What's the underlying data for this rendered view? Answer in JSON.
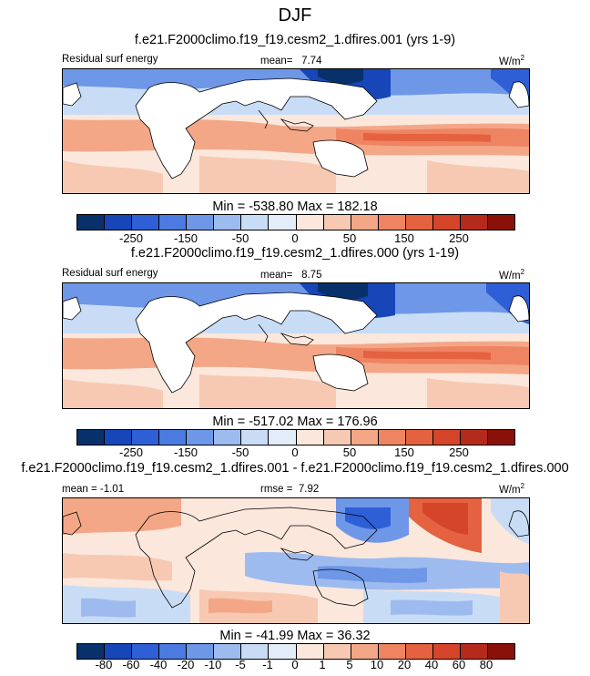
{
  "season": "DJF",
  "colors": {
    "scale": [
      "#08306b",
      "#1746b8",
      "#2f5fd6",
      "#4c7ae0",
      "#6f97e8",
      "#9ebbef",
      "#c9dcf5",
      "#e2edf9",
      "#fbe7dc",
      "#f7c9b2",
      "#f3a787",
      "#ee8462",
      "#e4623f",
      "#d4452a",
      "#b42b1c",
      "#8a1109"
    ],
    "land": "#ffffff",
    "coast": "#000000"
  },
  "panels": [
    {
      "case": "f.e21.F2000climo.f19_f19.cesm2_1.dfires.001 (yrs 1-9)",
      "variable": "Residual surf energy",
      "stat_label": "mean=",
      "stat_value": "7.74",
      "units": "W/m",
      "units_sup": "2",
      "minmax": "Min = -538.80 Max = 182.18",
      "ticks": [
        "-250",
        "-150",
        "-50",
        "0",
        "50",
        "150",
        "250"
      ]
    },
    {
      "case": "f.e21.F2000climo.f19_f19.cesm2_1.dfires.000 (yrs 1-19)",
      "variable": "Residual surf energy",
      "stat_label": "mean=",
      "stat_value": "8.75",
      "units": "W/m",
      "units_sup": "2",
      "minmax": "Min = -517.02 Max = 176.96",
      "ticks": [
        "-250",
        "-150",
        "-50",
        "0",
        "50",
        "150",
        "250"
      ]
    },
    {
      "case": "f.e21.F2000climo.f19_f19.cesm2_1.dfires.001 - f.e21.F2000climo.f19_f19.cesm2_1.dfires.000",
      "variable": "mean = ",
      "stat_label": "rmse =",
      "stat_value": "-1.01",
      "rmse_value": "7.92",
      "units": "W/m",
      "units_sup": "2",
      "minmax": "Min = -41.99 Max =  36.32",
      "ticks": [
        "-80",
        "-60",
        "-40",
        "-20",
        "-10",
        "-5",
        "-1",
        "0",
        "1",
        "5",
        "10",
        "20",
        "40",
        "60",
        "80"
      ]
    }
  ]
}
